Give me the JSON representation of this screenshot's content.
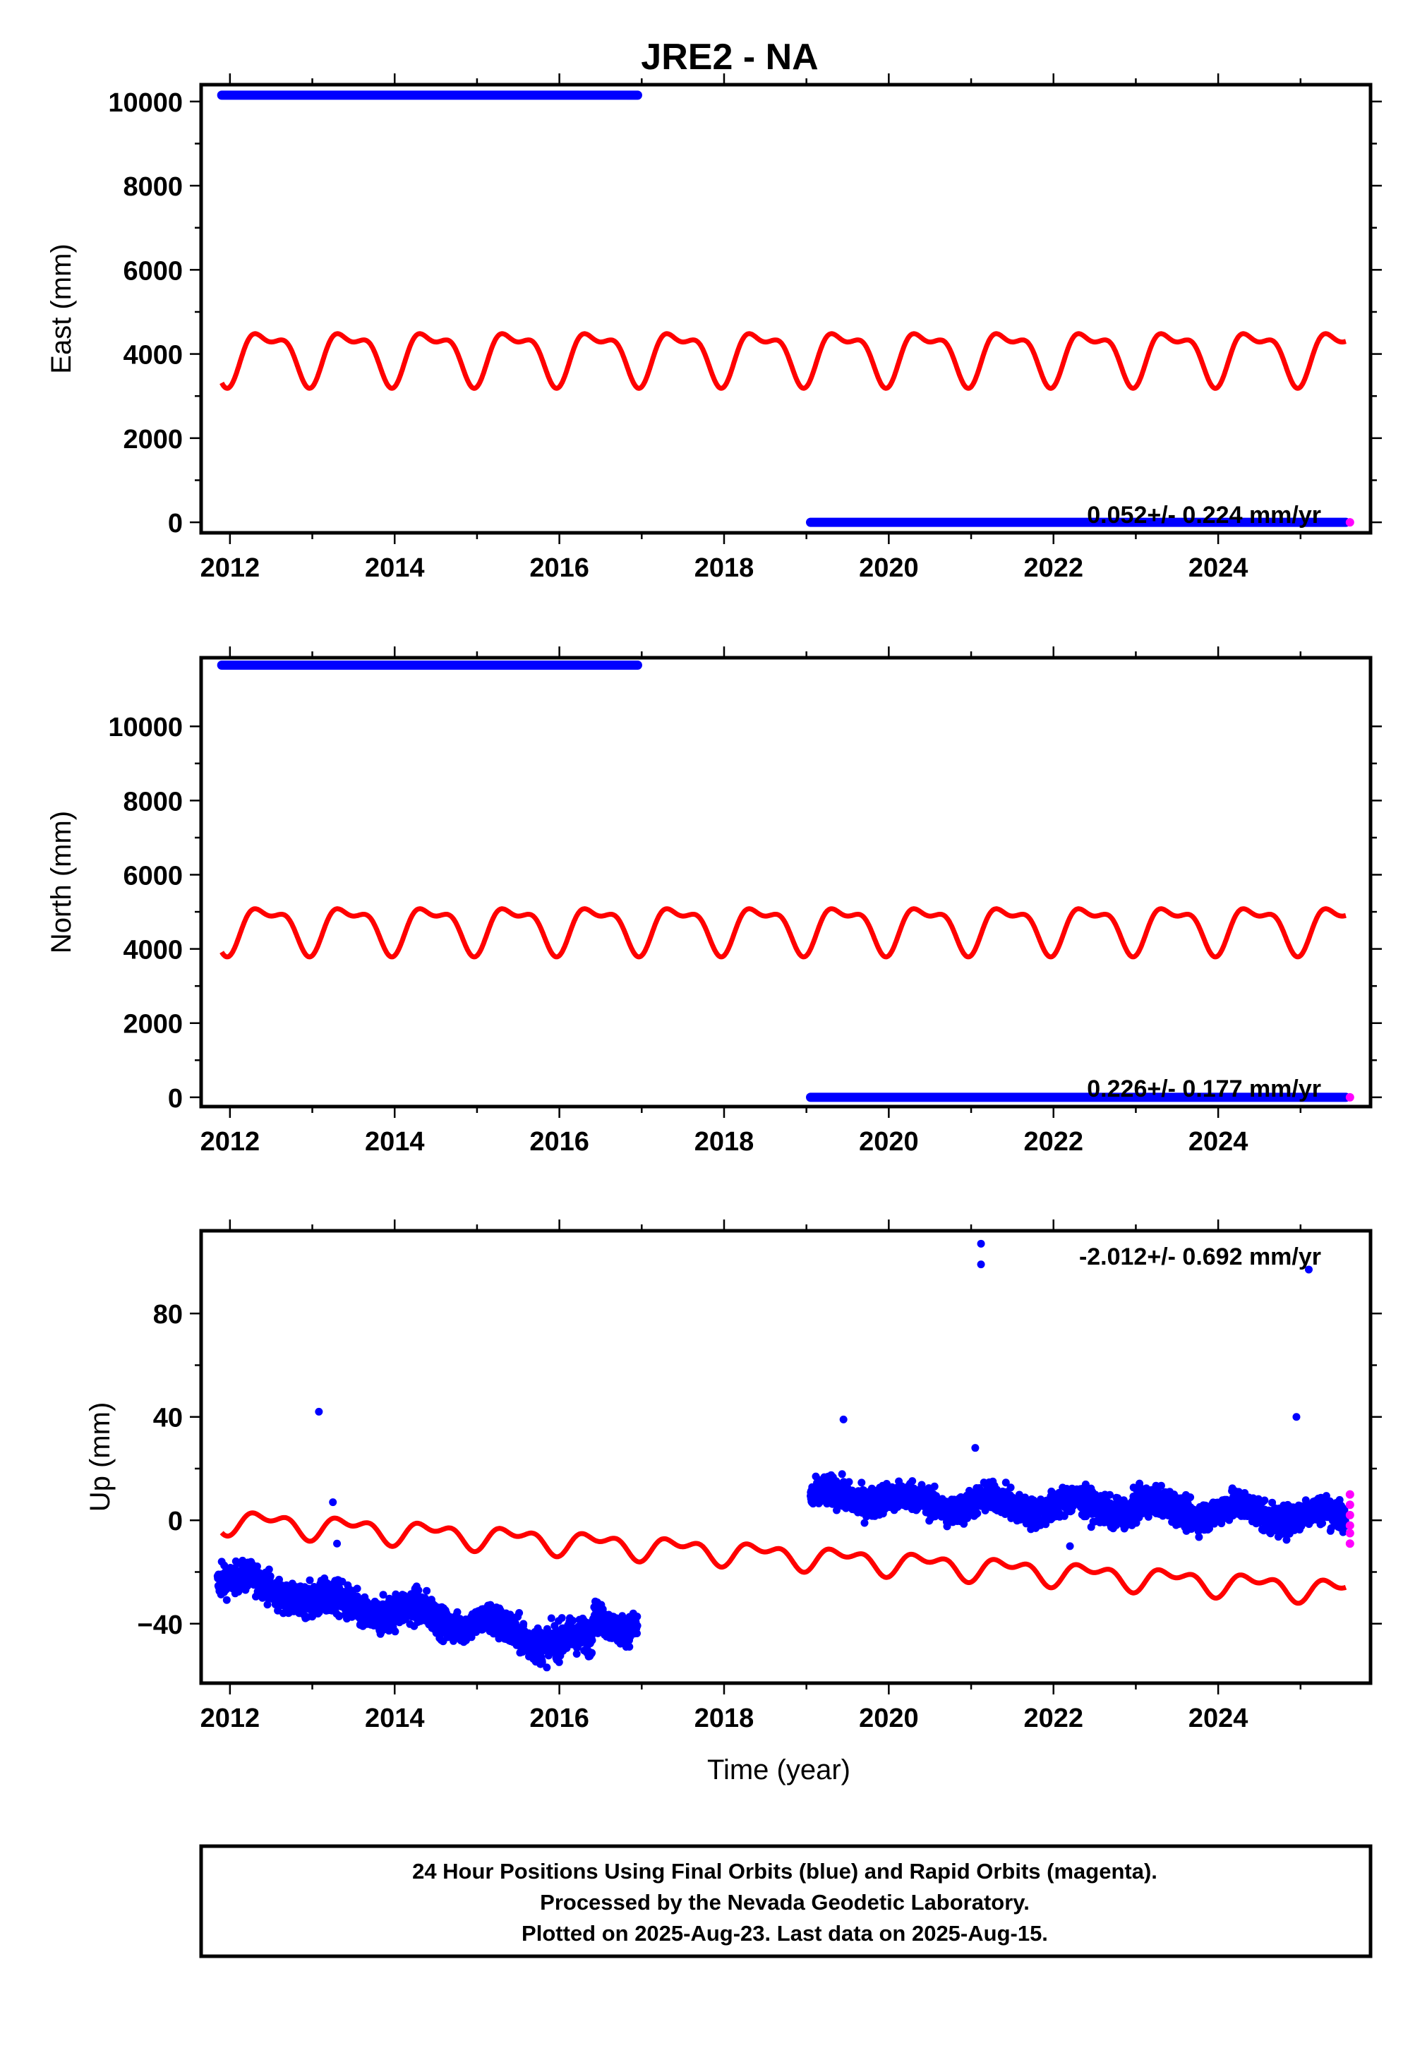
{
  "title": "JRE2 - NA",
  "colors": {
    "final_orbits": "#0000ff",
    "rapid_orbits": "#ff00ff",
    "model": "#ff0000",
    "frame": "#000000"
  },
  "footer": {
    "line1": "24 Hour Positions Using Final Orbits (blue) and Rapid Orbits (magenta).",
    "line2": "Processed by the Nevada Geodetic Laboratory.",
    "line3": "Plotted on 2025-Aug-23. Last data on 2025-Aug-15."
  },
  "chart_data": [
    {
      "type": "scatter",
      "ylabel": "East (mm)",
      "rate_label": "0.052+/- 0.224 mm/yr",
      "xlim": [
        2011.65,
        2025.85
      ],
      "ylim": [
        -250,
        10400
      ],
      "xticks": [
        2012,
        2014,
        2016,
        2018,
        2020,
        2022,
        2024
      ],
      "yticks": [
        0,
        2000,
        4000,
        6000,
        8000,
        10000
      ],
      "series": [
        {
          "segments": [
            {
              "x0": 2011.9,
              "x1": 2016.95,
              "y": 10150
            },
            {
              "x0": 2019.05,
              "x1": 2025.55,
              "y": 0
            }
          ]
        },
        {
          "points": [
            [
              2025.6,
              0
            ]
          ]
        },
        {
          "model": {
            "x0": 2011.9,
            "x1": 2025.55,
            "center": 4000,
            "trend": 0,
            "amp1": 560,
            "amp2": 260,
            "phase1": 0.2,
            "phase2": 0.6
          }
        }
      ]
    },
    {
      "type": "scatter",
      "ylabel": "North (mm)",
      "rate_label": "0.226+/- 0.177 mm/yr",
      "xlim": [
        2011.65,
        2025.85
      ],
      "ylim": [
        -250,
        11850
      ],
      "xticks": [
        2012,
        2014,
        2016,
        2018,
        2020,
        2022,
        2024
      ],
      "yticks": [
        0,
        2000,
        4000,
        6000,
        8000,
        10000
      ],
      "series": [
        {
          "segments": [
            {
              "x0": 2011.9,
              "x1": 2016.95,
              "y": 11650
            },
            {
              "x0": 2019.05,
              "x1": 2025.55,
              "y": 0
            }
          ]
        },
        {
          "points": [
            [
              2025.6,
              0
            ]
          ]
        },
        {
          "model": {
            "x0": 2011.9,
            "x1": 2025.55,
            "center": 4600,
            "trend": 0,
            "amp1": 560,
            "amp2": 260,
            "phase1": 0.2,
            "phase2": 0.6
          }
        }
      ]
    },
    {
      "type": "scatter",
      "ylabel": "Up (mm)",
      "xlabel": "Time (year)",
      "rate_label": "-2.012+/- 0.692 mm/yr",
      "xlim": [
        2011.65,
        2025.85
      ],
      "ylim": [
        -63,
        112
      ],
      "xticks": [
        2012,
        2014,
        2016,
        2018,
        2020,
        2022,
        2024
      ],
      "yticks": [
        -40,
        0,
        40,
        80
      ],
      "series": [
        {
          "clusters": [
            {
              "x0": 2011.85,
              "x1": 2013.0,
              "y0": -22,
              "y1": -30,
              "spread": 5
            },
            {
              "x0": 2013.0,
              "x1": 2014.5,
              "y0": -32,
              "y1": -37,
              "spread": 6
            },
            {
              "x0": 2014.5,
              "x1": 2015.2,
              "y0": -38,
              "y1": -40,
              "spread": 5
            },
            {
              "x0": 2015.2,
              "x1": 2016.4,
              "y0": -43,
              "y1": -48,
              "spread": 6
            },
            {
              "x0": 2016.4,
              "x1": 2016.95,
              "y0": -38,
              "y1": -40,
              "spread": 5
            },
            {
              "x0": 2019.05,
              "x1": 2020.0,
              "y0": 8,
              "y1": 10,
              "spread": 5
            },
            {
              "x0": 2020.0,
              "x1": 2022.5,
              "y0": 7,
              "y1": 5,
              "spread": 5
            },
            {
              "x0": 2022.5,
              "x1": 2025.55,
              "y0": 6,
              "y1": 1,
              "spread": 5
            }
          ],
          "outliers": [
            [
              2011.9,
              -16
            ],
            [
              2013.08,
              42
            ],
            [
              2013.25,
              7
            ],
            [
              2013.3,
              -9
            ],
            [
              2019.45,
              39
            ],
            [
              2021.12,
              107
            ],
            [
              2021.12,
              99
            ],
            [
              2025.1,
              97
            ],
            [
              2024.95,
              40
            ],
            [
              2021.05,
              28
            ],
            [
              2022.2,
              -10
            ]
          ]
        },
        {
          "points": [
            [
              2025.6,
              10
            ],
            [
              2025.6,
              6
            ],
            [
              2025.6,
              2
            ],
            [
              2025.6,
              -2
            ],
            [
              2025.6,
              -5
            ],
            [
              2025.6,
              -9
            ]
          ]
        },
        {
          "model": {
            "x0": 2011.9,
            "x1": 2025.55,
            "center": 0,
            "trend": -2.0,
            "t0": 2011.9,
            "amp1": 3.5,
            "amp2": 2.5,
            "phase1": 0.2,
            "phase2": 0.6
          }
        }
      ]
    }
  ]
}
